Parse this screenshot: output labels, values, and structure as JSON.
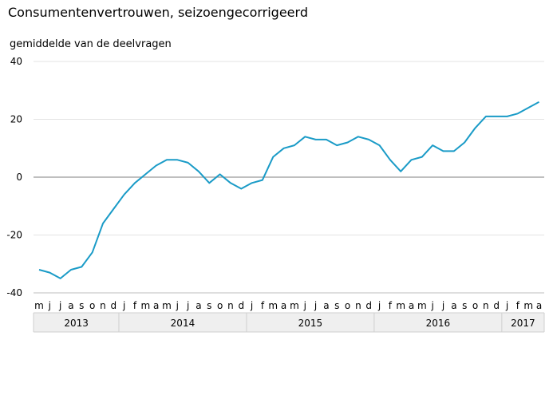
{
  "chart_data": {
    "type": "line",
    "title": "Consumentenvertrouwen, seizoengecorrigeerd",
    "ylabel": "gemiddelde van de deelvragen",
    "xlabel": "",
    "ylim": [
      -40,
      40
    ],
    "yticks": [
      -40,
      -20,
      0,
      20,
      40
    ],
    "grid": true,
    "legend": "none",
    "line_color": "#1a9bc7",
    "month_labels": [
      "m",
      "j",
      "j",
      "a",
      "s",
      "o",
      "n",
      "d",
      "j",
      "f",
      "m",
      "a",
      "m",
      "j",
      "j",
      "a",
      "s",
      "o",
      "n",
      "d",
      "j",
      "f",
      "m",
      "a",
      "m",
      "j",
      "j",
      "a",
      "s",
      "o",
      "n",
      "d",
      "j",
      "f",
      "m",
      "a",
      "m",
      "j",
      "j",
      "a",
      "s",
      "o",
      "n",
      "d",
      "j",
      "f",
      "m",
      "a"
    ],
    "years": [
      {
        "label": "2013",
        "count": 8
      },
      {
        "label": "2014",
        "count": 12
      },
      {
        "label": "2015",
        "count": 12
      },
      {
        "label": "2016",
        "count": 12
      },
      {
        "label": "2017",
        "count": 4
      }
    ],
    "series": [
      {
        "values": [
          -32,
          -33,
          -35,
          -32,
          -31,
          -26,
          -16,
          -11,
          -6,
          -2,
          1,
          4,
          6,
          6,
          5,
          2,
          -2,
          1,
          -2,
          -4,
          -2,
          -1,
          7,
          10,
          11,
          14,
          13,
          13,
          11,
          12,
          14,
          13,
          11,
          6,
          2,
          6,
          7,
          11,
          9,
          9,
          12,
          17,
          21,
          21,
          21,
          22,
          24,
          26
        ]
      }
    ]
  }
}
